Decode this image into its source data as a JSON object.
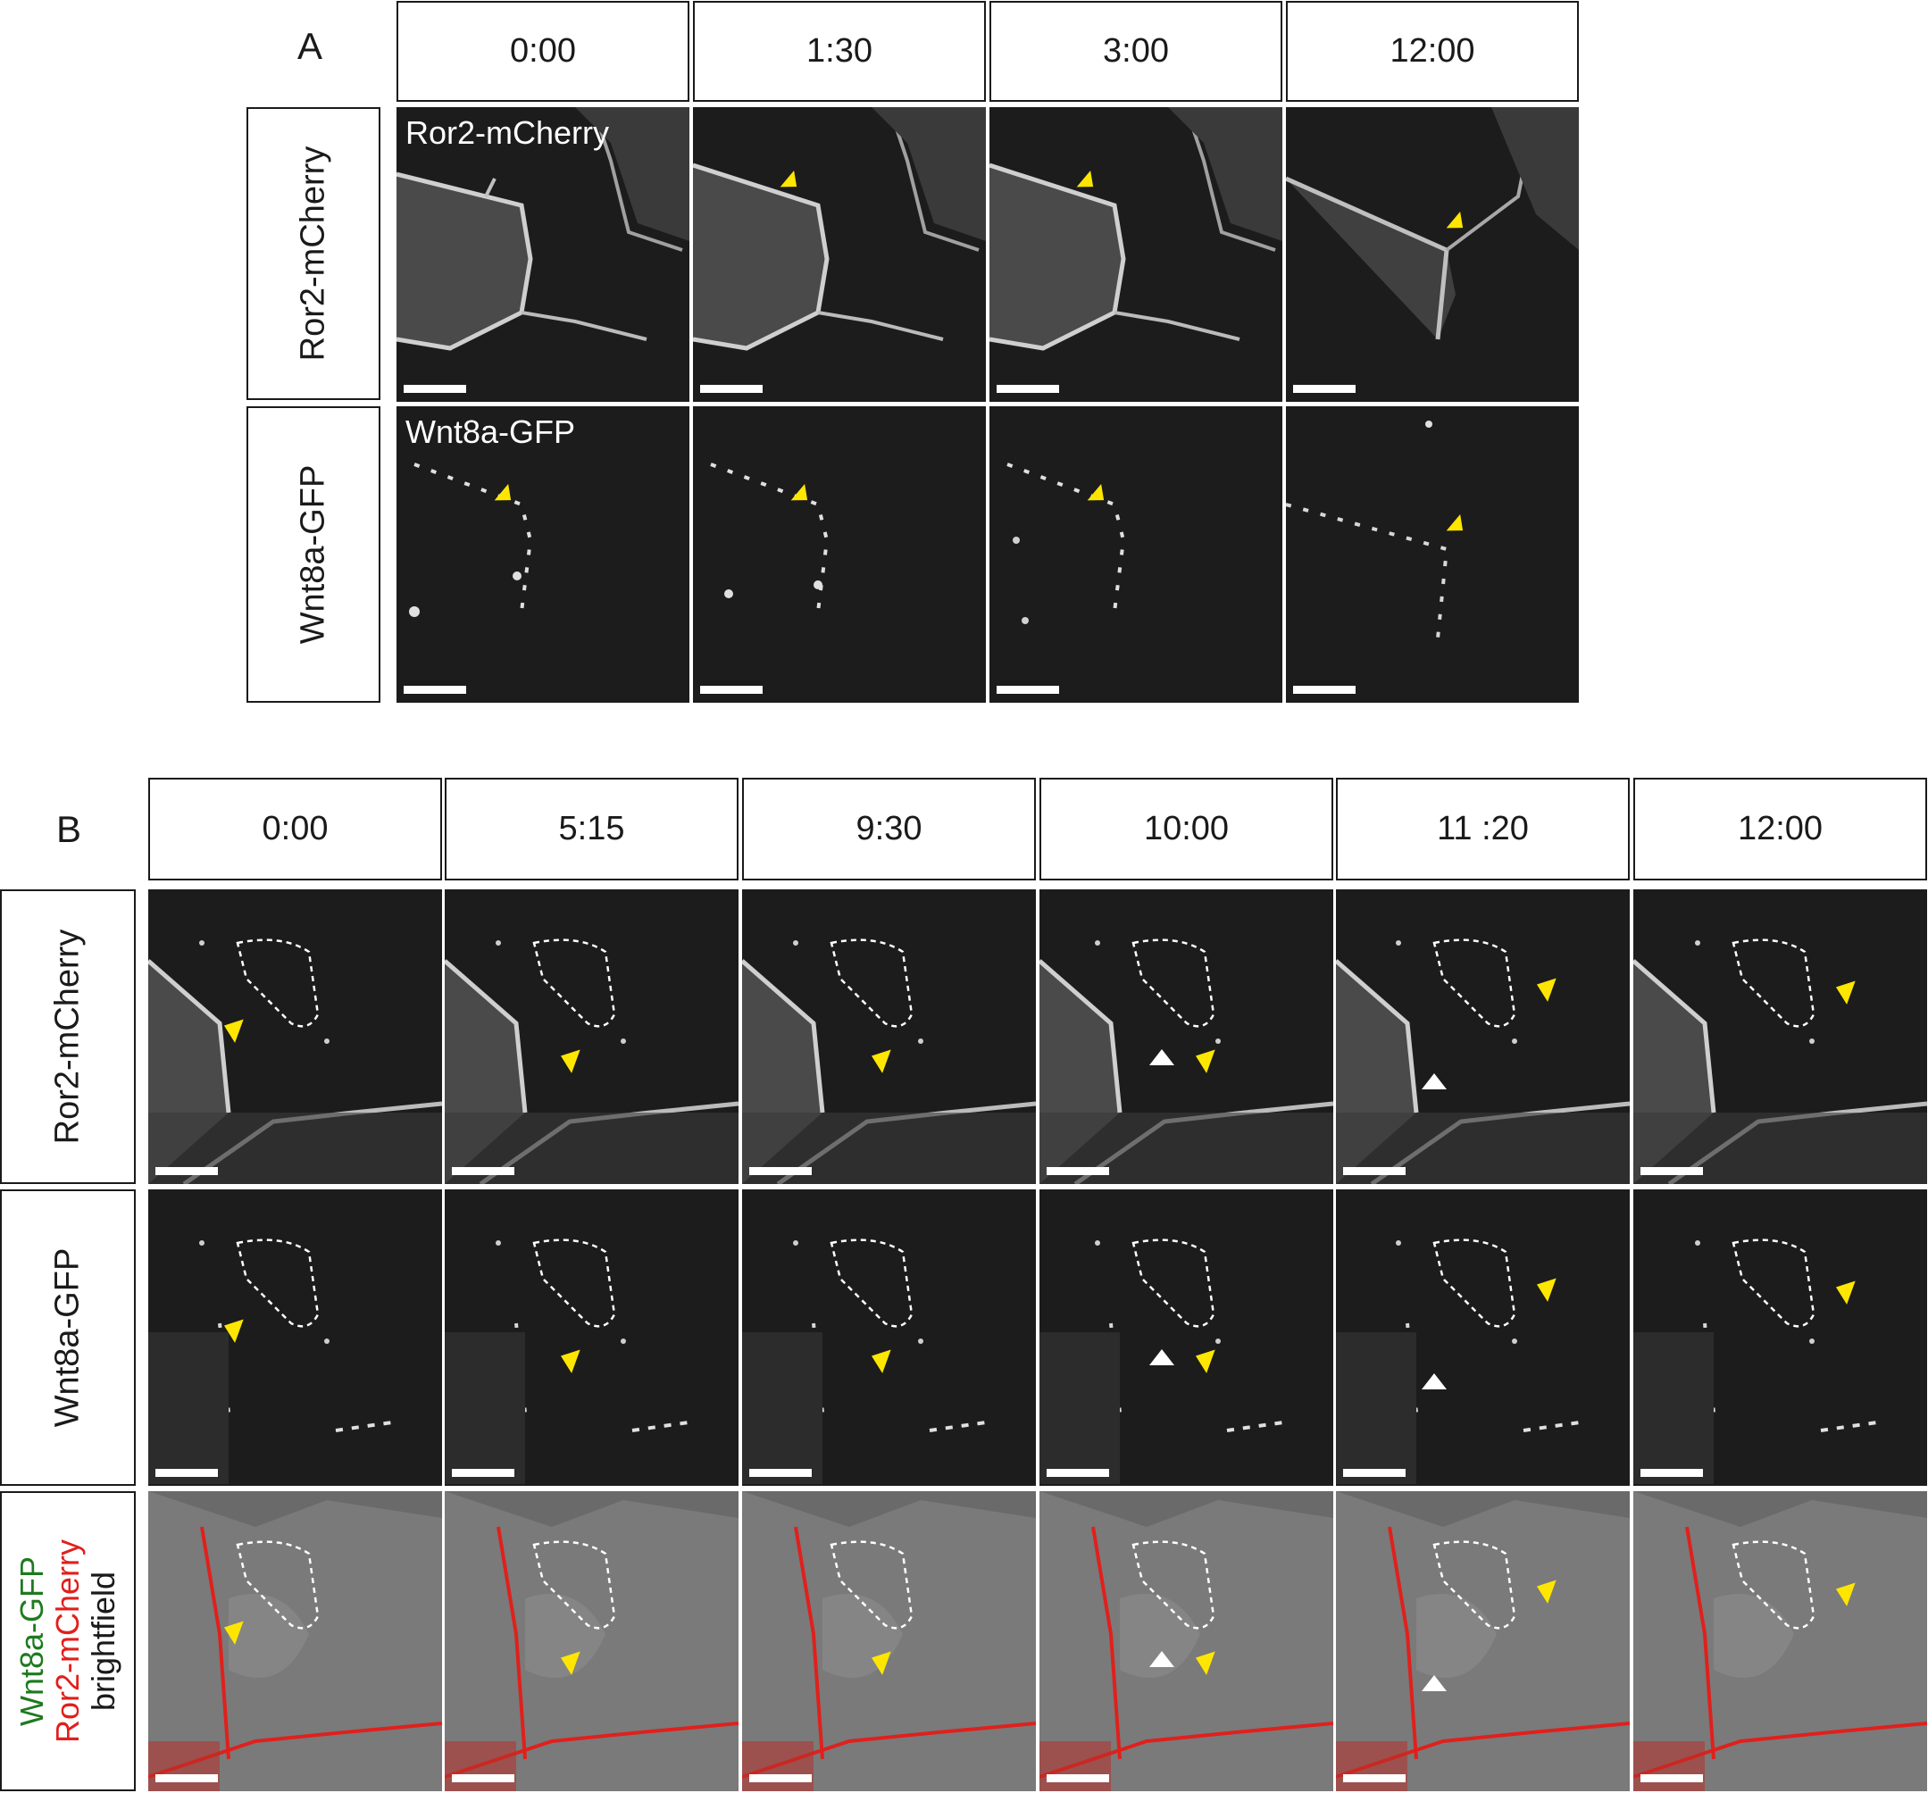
{
  "panel_a": {
    "letter": "A",
    "timepoints": [
      "0:00",
      "1:30",
      "3:00",
      "12:00"
    ],
    "row_labels": [
      "Ror2-mCherry",
      "Wnt8a-GFP"
    ],
    "in_image_labels": [
      "Ror2-mCherry",
      "Wnt8a-GFP"
    ]
  },
  "panel_b": {
    "letter": "B",
    "timepoints": [
      "0:00",
      "5:15",
      "9:30",
      "10:00",
      "11 :20",
      "12:00"
    ],
    "row_labels": [
      "Ror2-mCherry",
      "Wnt8a-GFP"
    ],
    "merge_label": {
      "line1": "Wnt8a-GFP",
      "line2": "Ror2-mCherry",
      "line3": "brightfield"
    }
  },
  "colors": {
    "green_label": "#1e7a1e",
    "red_label": "#e0201c",
    "arrow_yellow": "#ffe600",
    "arrow_white": "#ffffff",
    "micrograph_bg": "#1c1c1c",
    "merge_bg": "#6a6a6a",
    "merge_signal": "#e0201c"
  },
  "icons": {
    "yellow_arrow": "yellow-arrow-icon",
    "white_arrow": "white-arrow-icon",
    "scale_bar": "scale-bar"
  }
}
